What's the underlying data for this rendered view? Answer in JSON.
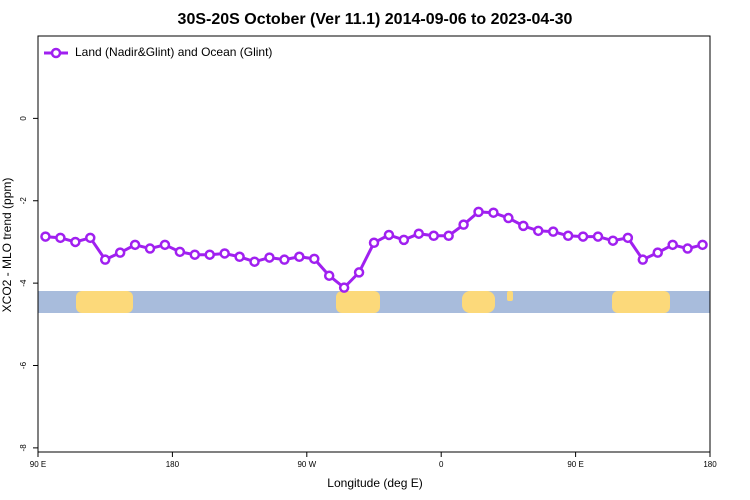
{
  "chart_data": {
    "type": "line",
    "title": "30S-20S October (Ver 11.1)   2014-09-06 to 2023-04-30",
    "xlabel": "Longitude (deg E)",
    "ylabel": "XCO2 - MLO trend (ppm)",
    "x": [
      95,
      105,
      115,
      125,
      135,
      145,
      155,
      165,
      175,
      185,
      195,
      205,
      215,
      225,
      235,
      245,
      255,
      265,
      275,
      285,
      295,
      305,
      315,
      325,
      335,
      345,
      355,
      365,
      375,
      385,
      395,
      405,
      415,
      425,
      435,
      445,
      455,
      465,
      475,
      485,
      495,
      505,
      515,
      525,
      535
    ],
    "series": [
      {
        "name": "Land (Nadir&Glint) and Ocean (Glint)",
        "color": "#a020f0",
        "values": [
          -2.87,
          -2.9,
          -3.0,
          -2.9,
          -3.43,
          -3.26,
          -3.07,
          -3.16,
          -3.07,
          -3.24,
          -3.31,
          -3.31,
          -3.28,
          -3.36,
          -3.48,
          -3.38,
          -3.43,
          -3.36,
          -3.41,
          -3.82,
          -4.11,
          -3.74,
          -3.02,
          -2.83,
          -2.95,
          -2.8,
          -2.85,
          -2.85,
          -2.58,
          -2.27,
          -2.29,
          -2.42,
          -2.61,
          -2.73,
          -2.75,
          -2.85,
          -2.87,
          -2.87,
          -2.97,
          -2.9,
          -3.43,
          -3.26,
          -3.07,
          -3.16,
          -3.07
        ]
      }
    ],
    "xlim": [
      90,
      540
    ],
    "xticks": [
      {
        "value": 90,
        "label": "90 E"
      },
      180,
      {
        "value": 270,
        "label": "90 W"
      },
      {
        "value": 360,
        "label": "0"
      },
      {
        "value": 450,
        "label": "90 E"
      },
      {
        "value": 540,
        "label": "180"
      }
    ],
    "ylim": [
      -8.1,
      2.0
    ],
    "yticks": [
      0,
      -2,
      -4,
      -6,
      -8
    ],
    "legend": "top-left"
  }
}
